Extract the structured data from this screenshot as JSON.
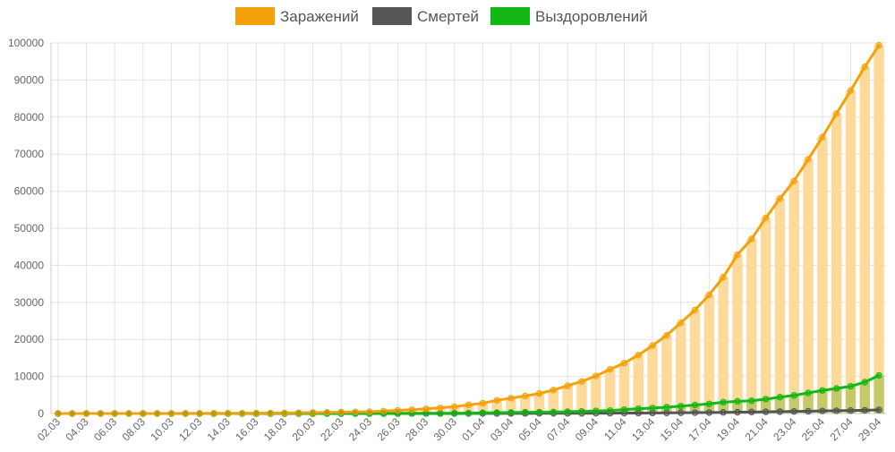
{
  "colors": {
    "infected": "#f5a10a",
    "infected_bar": "#fdd99a",
    "deaths": "#555555",
    "recovered": "#14b814",
    "recovered_bar": "#c5c96a",
    "grid": "#e3e3e3",
    "axis_text": "#666666"
  },
  "chart_data": {
    "type": "line",
    "legend_position": "top-center",
    "grid": true,
    "ylim": [
      0,
      100000
    ],
    "y_ticks": [
      0,
      10000,
      20000,
      30000,
      40000,
      50000,
      60000,
      70000,
      80000,
      90000,
      100000
    ],
    "x": [
      "02.03",
      "03.03",
      "04.03",
      "05.03",
      "06.03",
      "07.03",
      "08.03",
      "09.03",
      "10.03",
      "11.03",
      "12.03",
      "13.03",
      "14.03",
      "15.03",
      "16.03",
      "17.03",
      "18.03",
      "19.03",
      "20.03",
      "21.03",
      "22.03",
      "23.03",
      "24.03",
      "25.03",
      "26.03",
      "27.03",
      "28.03",
      "29.03",
      "30.03",
      "31.03",
      "01.04",
      "02.04",
      "03.04",
      "04.04",
      "05.04",
      "06.04",
      "07.04",
      "08.04",
      "09.04",
      "10.04",
      "11.04",
      "12.04",
      "13.04",
      "14.04",
      "15.04",
      "16.04",
      "17.04",
      "18.04",
      "19.04",
      "20.04",
      "21.04",
      "22.04",
      "23.04",
      "24.04",
      "25.04",
      "26.04",
      "27.04",
      "28.04",
      "29.04"
    ],
    "x_tick_labels": [
      "02.03",
      "04.03",
      "06.03",
      "08.03",
      "10.03",
      "12.03",
      "14.03",
      "16.03",
      "18.03",
      "20.03",
      "22.03",
      "24.03",
      "26.03",
      "28.03",
      "30.03",
      "01.04",
      "03.04",
      "05.04",
      "07.04",
      "09.04",
      "11.04",
      "13.04",
      "15.04",
      "17.04",
      "19.04",
      "21.04",
      "23.04",
      "25.04",
      "27.04",
      "29.04"
    ],
    "series": [
      {
        "name": "Заражений",
        "values": [
          3,
          3,
          3,
          3,
          3,
          4,
          4,
          10,
          17,
          20,
          28,
          45,
          59,
          63,
          93,
          114,
          147,
          199,
          253,
          306,
          367,
          438,
          495,
          658,
          840,
          1036,
          1264,
          1534,
          1836,
          2337,
          2777,
          3548,
          4149,
          4731,
          5389,
          6343,
          7497,
          8672,
          10131,
          11917,
          13584,
          15770,
          18328,
          21102,
          24490,
          27938,
          32008,
          36793,
          42853,
          47121,
          52763,
          57999,
          62773,
          68622,
          74588,
          80949,
          87147,
          93558,
          99399
        ]
      },
      {
        "name": "Смертей",
        "values": [
          0,
          0,
          0,
          0,
          0,
          0,
          0,
          0,
          0,
          0,
          0,
          0,
          0,
          0,
          0,
          0,
          0,
          1,
          1,
          1,
          1,
          1,
          1,
          3,
          3,
          4,
          4,
          8,
          9,
          17,
          24,
          30,
          34,
          43,
          45,
          47,
          58,
          63,
          76,
          94,
          106,
          130,
          148,
          170,
          198,
          232,
          273,
          313,
          361,
          405,
          456,
          513,
          555,
          615,
          681,
          747,
          794,
          867,
          972
        ]
      },
      {
        "name": "Выздоровлений",
        "values": [
          0,
          0,
          0,
          0,
          0,
          0,
          0,
          2,
          2,
          2,
          3,
          3,
          5,
          5,
          8,
          8,
          9,
          9,
          9,
          12,
          16,
          17,
          22,
          29,
          38,
          45,
          49,
          64,
          66,
          121,
          190,
          235,
          281,
          333,
          355,
          406,
          494,
          580,
          698,
          795,
          1045,
          1291,
          1470,
          1694,
          1986,
          2304,
          2590,
          3057,
          3291,
          3446,
          3873,
          4420,
          4891,
          5568,
          6213,
          6767,
          7346,
          8456,
          10286
        ]
      }
    ]
  }
}
